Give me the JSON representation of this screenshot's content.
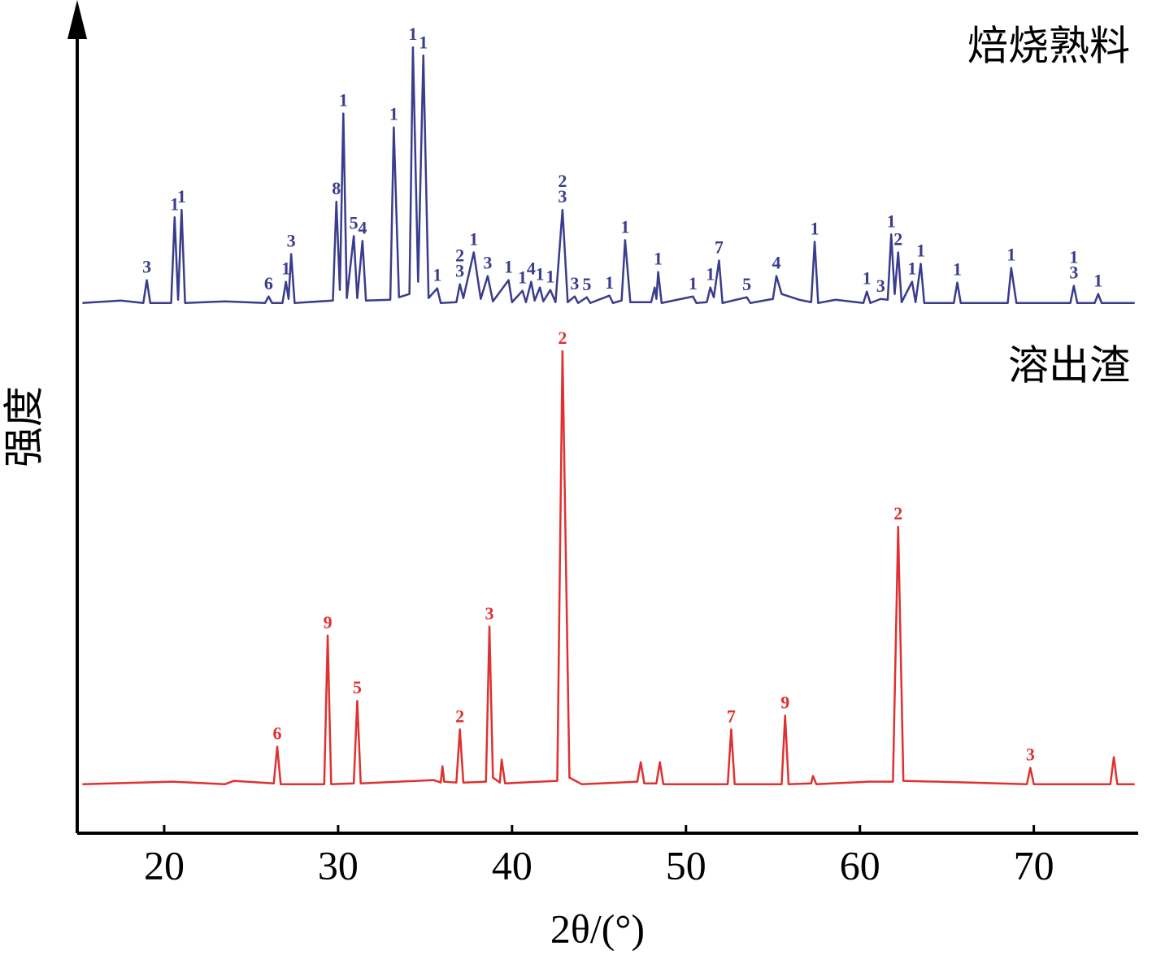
{
  "chart_data": {
    "type": "line",
    "x_label": "2θ/(°)",
    "y_label": "强度",
    "xlim": [
      15,
      76
    ],
    "ylim": [
      0,
      100
    ],
    "xticks": [
      20,
      30,
      40,
      50,
      60,
      70
    ],
    "series": [
      {
        "name": "焙烧熟料",
        "color": "#3a3c8c",
        "x": [
          15.3,
          17.5,
          18.8,
          19.0,
          19.2,
          20.4,
          20.6,
          20.8,
          21.0,
          21.2,
          23.5,
          25.8,
          26.0,
          26.2,
          26.8,
          27.0,
          27.15,
          27.3,
          27.5,
          29.7,
          29.9,
          30.1,
          30.3,
          30.5,
          30.9,
          31.1,
          31.4,
          31.6,
          33.0,
          33.2,
          33.5,
          34.1,
          34.3,
          34.6,
          34.9,
          35.2,
          35.7,
          35.9,
          36.8,
          37.0,
          37.2,
          37.8,
          38.2,
          38.6,
          38.9,
          39.8,
          40.0,
          40.6,
          40.8,
          41.1,
          41.3,
          41.6,
          41.8,
          42.2,
          42.5,
          42.9,
          43.2,
          43.6,
          43.8,
          44.3,
          44.5,
          45.6,
          45.8,
          46.3,
          46.5,
          46.8,
          48.0,
          48.2,
          48.3,
          48.4,
          48.6,
          50.4,
          50.6,
          51.2,
          51.4,
          51.6,
          51.9,
          52.1,
          53.5,
          53.7,
          55.0,
          55.2,
          55.5,
          56.5,
          57.2,
          57.4,
          57.6,
          58.6,
          60.2,
          60.4,
          60.6,
          61.2,
          61.6,
          61.8,
          62.0,
          62.2,
          62.4,
          63.0,
          63.2,
          63.5,
          63.7,
          65.4,
          65.6,
          65.8,
          68.5,
          68.7,
          69.0,
          72.1,
          72.3,
          72.5,
          73.5,
          73.7,
          73.9,
          75.8
        ],
        "values": [
          64.9,
          65.2,
          64.9,
          67.7,
          64.9,
          64.9,
          75.4,
          65.3,
          76.3,
          64.9,
          65.1,
          64.9,
          65.7,
          64.9,
          64.9,
          67.5,
          65.4,
          70.9,
          64.9,
          65.2,
          77.3,
          66.5,
          88.1,
          65.5,
          73.1,
          65.5,
          72.5,
          65.2,
          65.3,
          86.4,
          65.6,
          66.0,
          96.2,
          67.5,
          95.2,
          65.5,
          66.7,
          64.9,
          65.0,
          67.2,
          65.5,
          71.1,
          65.4,
          68.2,
          65.1,
          67.7,
          65.0,
          66.4,
          65.0,
          67.5,
          65.2,
          66.8,
          65.1,
          66.5,
          65.0,
          76.3,
          65.0,
          65.7,
          64.9,
          65.6,
          64.9,
          65.8,
          64.9,
          65.2,
          72.6,
          65.0,
          65.0,
          66.8,
          65.4,
          68.7,
          64.9,
          65.7,
          64.9,
          65.0,
          66.8,
          65.6,
          70.1,
          64.9,
          65.6,
          64.9,
          65.4,
          68.2,
          66.0,
          65.3,
          65.0,
          72.4,
          64.9,
          65.3,
          64.9,
          66.3,
          64.9,
          65.4,
          65.3,
          73.3,
          66.0,
          71.1,
          65.0,
          67.5,
          65.0,
          69.7,
          64.9,
          64.9,
          67.4,
          64.9,
          64.9,
          69.2,
          64.9,
          64.9,
          67.0,
          64.9,
          64.9,
          66.0,
          64.9,
          64.9
        ],
        "peak_labels": [
          {
            "x": 19.0,
            "text": "3"
          },
          {
            "x": 20.6,
            "text": "1"
          },
          {
            "x": 21.0,
            "text": "1"
          },
          {
            "x": 26.0,
            "text": "6"
          },
          {
            "x": 27.0,
            "text": "1"
          },
          {
            "x": 27.3,
            "text": "3"
          },
          {
            "x": 29.9,
            "text": "8"
          },
          {
            "x": 30.3,
            "text": "1"
          },
          {
            "x": 30.9,
            "text": "5"
          },
          {
            "x": 31.4,
            "text": "4"
          },
          {
            "x": 33.2,
            "text": "1"
          },
          {
            "x": 34.3,
            "text": "1"
          },
          {
            "x": 34.9,
            "text": "1"
          },
          {
            "x": 35.7,
            "text": "1"
          },
          {
            "x": 37.0,
            "text": "2"
          },
          {
            "x": 37.0,
            "text": "3"
          },
          {
            "x": 37.8,
            "text": "1"
          },
          {
            "x": 38.6,
            "text": "3"
          },
          {
            "x": 39.8,
            "text": "1"
          },
          {
            "x": 40.6,
            "text": "1"
          },
          {
            "x": 41.1,
            "text": "4"
          },
          {
            "x": 41.6,
            "text": "1"
          },
          {
            "x": 42.2,
            "text": "1"
          },
          {
            "x": 42.9,
            "text": "2"
          },
          {
            "x": 42.9,
            "text": "3"
          },
          {
            "x": 43.6,
            "text": "3"
          },
          {
            "x": 44.3,
            "text": "5"
          },
          {
            "x": 45.6,
            "text": "1"
          },
          {
            "x": 46.5,
            "text": "1"
          },
          {
            "x": 48.4,
            "text": "1"
          },
          {
            "x": 50.4,
            "text": "1"
          },
          {
            "x": 51.4,
            "text": "1"
          },
          {
            "x": 51.9,
            "text": "7"
          },
          {
            "x": 53.5,
            "text": "5"
          },
          {
            "x": 55.2,
            "text": "4"
          },
          {
            "x": 57.4,
            "text": "1"
          },
          {
            "x": 60.4,
            "text": "1"
          },
          {
            "x": 61.2,
            "text": "3"
          },
          {
            "x": 61.8,
            "text": "1"
          },
          {
            "x": 62.2,
            "text": "2"
          },
          {
            "x": 63.0,
            "text": "1"
          },
          {
            "x": 63.5,
            "text": "1"
          },
          {
            "x": 65.6,
            "text": "1"
          },
          {
            "x": 68.7,
            "text": "1"
          },
          {
            "x": 72.3,
            "text": "1"
          },
          {
            "x": 72.3,
            "text": "3"
          },
          {
            "x": 73.7,
            "text": "1"
          }
        ]
      },
      {
        "name": "溶出渣",
        "color": "#e03030",
        "x": [
          15.3,
          20.5,
          23.5,
          24.0,
          26.3,
          26.5,
          26.7,
          29.2,
          29.4,
          29.6,
          30.9,
          31.1,
          31.3,
          35.5,
          35.9,
          36.0,
          36.1,
          36.8,
          37.0,
          37.2,
          38.5,
          38.7,
          38.9,
          39.3,
          39.4,
          39.6,
          42.6,
          42.9,
          43.3,
          44.0,
          47.2,
          47.4,
          47.6,
          48.3,
          48.5,
          48.7,
          52.4,
          52.6,
          52.8,
          55.5,
          55.7,
          55.9,
          57.2,
          57.3,
          57.5,
          60.5,
          61.9,
          62.2,
          62.5,
          64.5,
          66.4,
          69.6,
          69.8,
          70.0,
          74.4,
          74.6,
          74.8,
          75.8
        ],
        "values": [
          6.0,
          6.3,
          6.0,
          6.4,
          6.1,
          10.6,
          6.0,
          6.0,
          24.2,
          6.0,
          6.1,
          16.2,
          6.1,
          6.5,
          6.2,
          8.2,
          6.3,
          6.2,
          12.7,
          6.2,
          6.3,
          25.3,
          6.8,
          6.2,
          9.0,
          6.1,
          6.4,
          59.0,
          6.8,
          6.0,
          6.3,
          8.7,
          6.1,
          6.1,
          8.7,
          6.0,
          6.0,
          12.7,
          6.0,
          6.0,
          14.4,
          6.0,
          6.1,
          7.0,
          6.0,
          6.3,
          6.3,
          37.5,
          6.4,
          6.3,
          6.2,
          6.0,
          8.0,
          6.0,
          6.0,
          9.3,
          6.0,
          6.0
        ],
        "peak_labels": [
          {
            "x": 26.5,
            "text": "6"
          },
          {
            "x": 29.4,
            "text": "9"
          },
          {
            "x": 31.1,
            "text": "5"
          },
          {
            "x": 37.0,
            "text": "2"
          },
          {
            "x": 38.7,
            "text": "3"
          },
          {
            "x": 42.9,
            "text": "2"
          },
          {
            "x": 52.6,
            "text": "7"
          },
          {
            "x": 55.7,
            "text": "9"
          },
          {
            "x": 62.2,
            "text": "2"
          },
          {
            "x": 69.8,
            "text": "3"
          }
        ]
      }
    ]
  }
}
